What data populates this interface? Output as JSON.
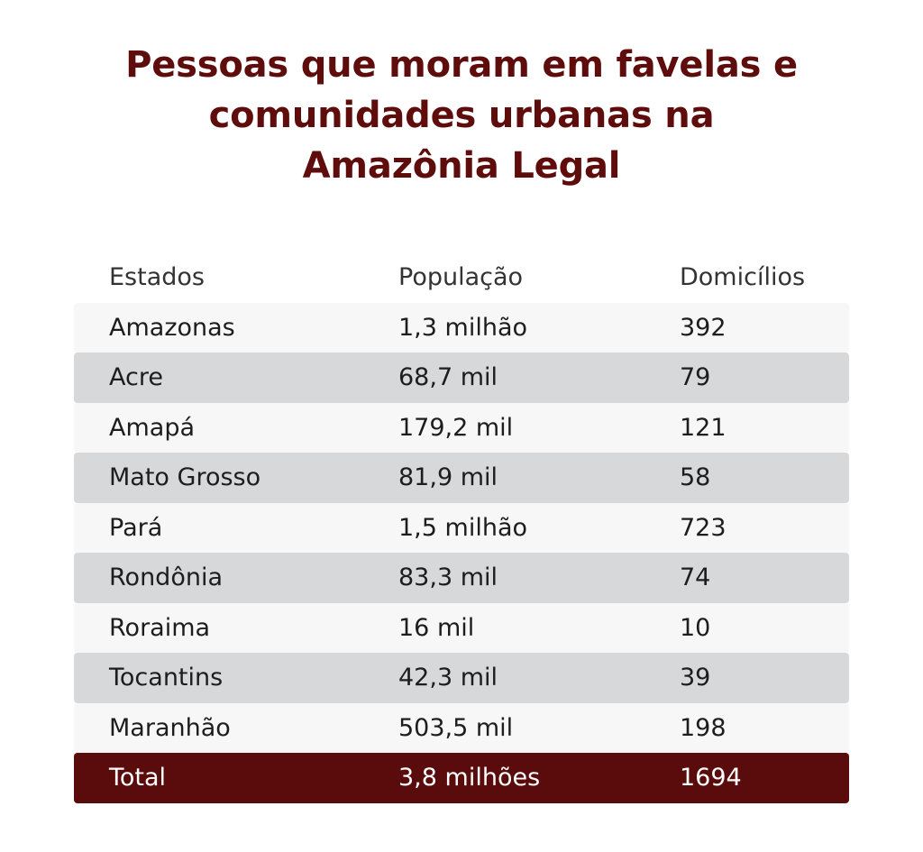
{
  "title_lines": [
    "Pessoas que moram em favelas e",
    "comunidades urbanas na",
    "Amazônia Legal"
  ],
  "colors": {
    "title": "#5e0c0c",
    "row_light": "#f7f7f7",
    "row_dark": "#d6d8da",
    "total_bg": "#5a0b0b",
    "total_text": "#ffffff"
  },
  "chart_data": {
    "type": "table",
    "title": "Pessoas que moram em favelas e comunidades urbanas na Amazônia Legal",
    "columns": [
      "Estados",
      "População",
      "Domicílios"
    ],
    "rows": [
      [
        "Amazonas",
        "1,3 milhão",
        "392"
      ],
      [
        "Acre",
        "68,7 mil",
        "79"
      ],
      [
        "Amapá",
        "179,2 mil",
        "121"
      ],
      [
        "Mato Grosso",
        "81,9 mil",
        "58"
      ],
      [
        "Pará",
        "1,5 milhão",
        "723"
      ],
      [
        "Rondônia",
        "83,3 mil",
        "74"
      ],
      [
        "Roraima",
        "16 mil",
        "10"
      ],
      [
        "Tocantins",
        "42,3 mil",
        "39"
      ],
      [
        "Maranhão",
        "503,5 mil",
        "198"
      ]
    ],
    "total": [
      "Total",
      "3,8 milhões",
      "1694"
    ]
  }
}
